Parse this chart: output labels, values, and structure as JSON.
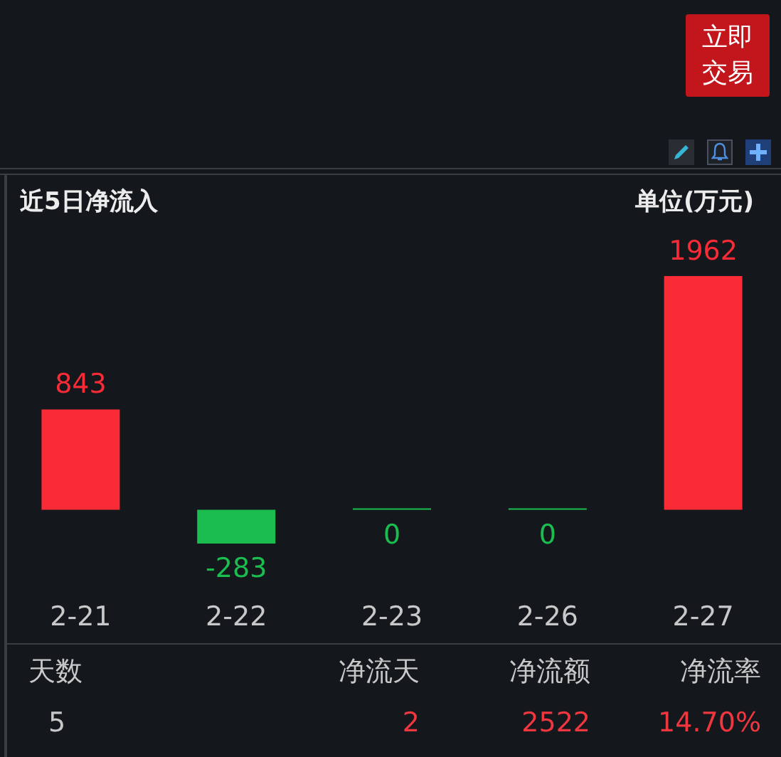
{
  "chart_data": {
    "type": "bar",
    "title": "近5日净流入",
    "ylabel": "单位(万元)",
    "categories": [
      "2-21",
      "2-22",
      "2-23",
      "2-26",
      "2-27"
    ],
    "values": [
      843,
      -283,
      0,
      0,
      1962
    ],
    "colors": [
      "#f92b36",
      "#1bbd4f",
      "#1bbd4f",
      "#1bbd4f",
      "#f92b36"
    ],
    "data_labels": true,
    "annotations": [
      "天数",
      "净流天",
      "净流额",
      "净流率",
      "5",
      "2",
      "2522",
      "14.70%",
      "立即交易"
    ]
  }
}
